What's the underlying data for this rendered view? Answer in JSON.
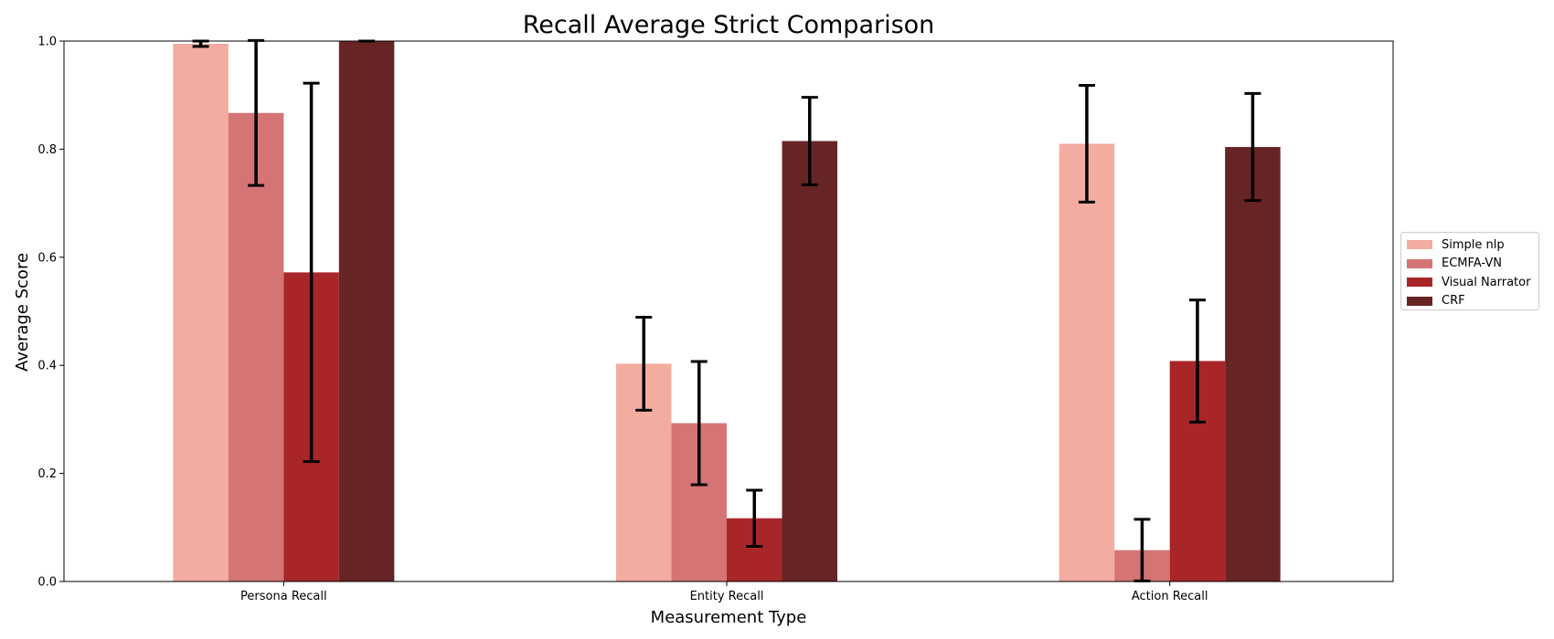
{
  "chart_data": {
    "type": "bar",
    "title": "Recall Average Strict Comparison",
    "xlabel": "Measurement Type",
    "ylabel": "Average Score",
    "ylim": [
      0,
      1.0
    ],
    "yticks": [
      "0.0",
      "0.2",
      "0.4",
      "0.6",
      "0.8",
      "1.0"
    ],
    "grid": false,
    "legend_position": "right",
    "categories": [
      "Persona Recall",
      "Entity Recall",
      "Action Recall"
    ],
    "series": [
      {
        "name": "Simple nlp",
        "color": "#f4aca0",
        "values": [
          0.995,
          0.403,
          0.81
        ],
        "errors": [
          0.005,
          0.086,
          0.108
        ]
      },
      {
        "name": "ECMFA-VN",
        "color": "#d47474",
        "values": [
          0.867,
          0.293,
          0.058
        ],
        "errors": [
          0.134,
          0.114,
          0.057
        ]
      },
      {
        "name": "Visual Narrator",
        "color": "#a82628",
        "values": [
          0.572,
          0.117,
          0.408
        ],
        "errors": [
          0.35,
          0.052,
          0.113
        ]
      },
      {
        "name": "CRF",
        "color": "#672425",
        "values": [
          1.0,
          0.815,
          0.804
        ],
        "errors": [
          0.0,
          0.081,
          0.099
        ]
      }
    ]
  }
}
